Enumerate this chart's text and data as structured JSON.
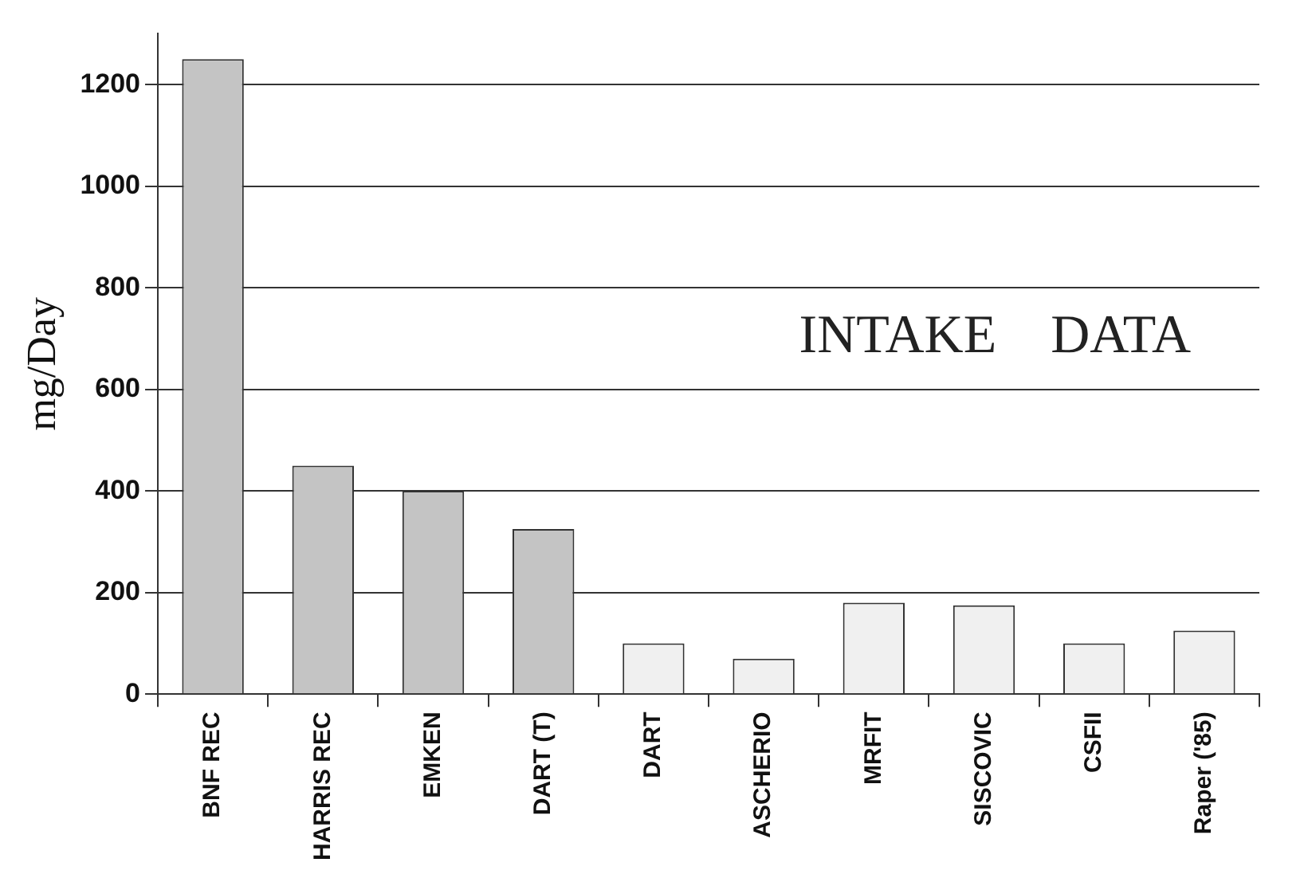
{
  "chart_data": {
    "type": "bar",
    "ylabel": "mg/Day",
    "annotations": [
      "INTAKE    DATA"
    ],
    "categories": [
      "BNF REC",
      "HARRIS REC",
      "EMKEN",
      "DART (T)",
      "DART",
      "ASCHERIO",
      "MRFIT",
      "SISCOVIC",
      "CSFII",
      "Raper ('85)"
    ],
    "values": [
      1250,
      450,
      400,
      325,
      100,
      70,
      180,
      175,
      100,
      125
    ],
    "colors": [
      "#c4c4c4",
      "#c4c4c4",
      "#c4c4c4",
      "#c4c4c4",
      "#f0f0f0",
      "#f0f0f0",
      "#f0f0f0",
      "#f0f0f0",
      "#f0f0f0",
      "#f0f0f0"
    ],
    "ylim": [
      0,
      1300
    ],
    "yticks": [
      0,
      200,
      400,
      600,
      800,
      1000,
      1200
    ],
    "grid": "y",
    "legend": false
  }
}
